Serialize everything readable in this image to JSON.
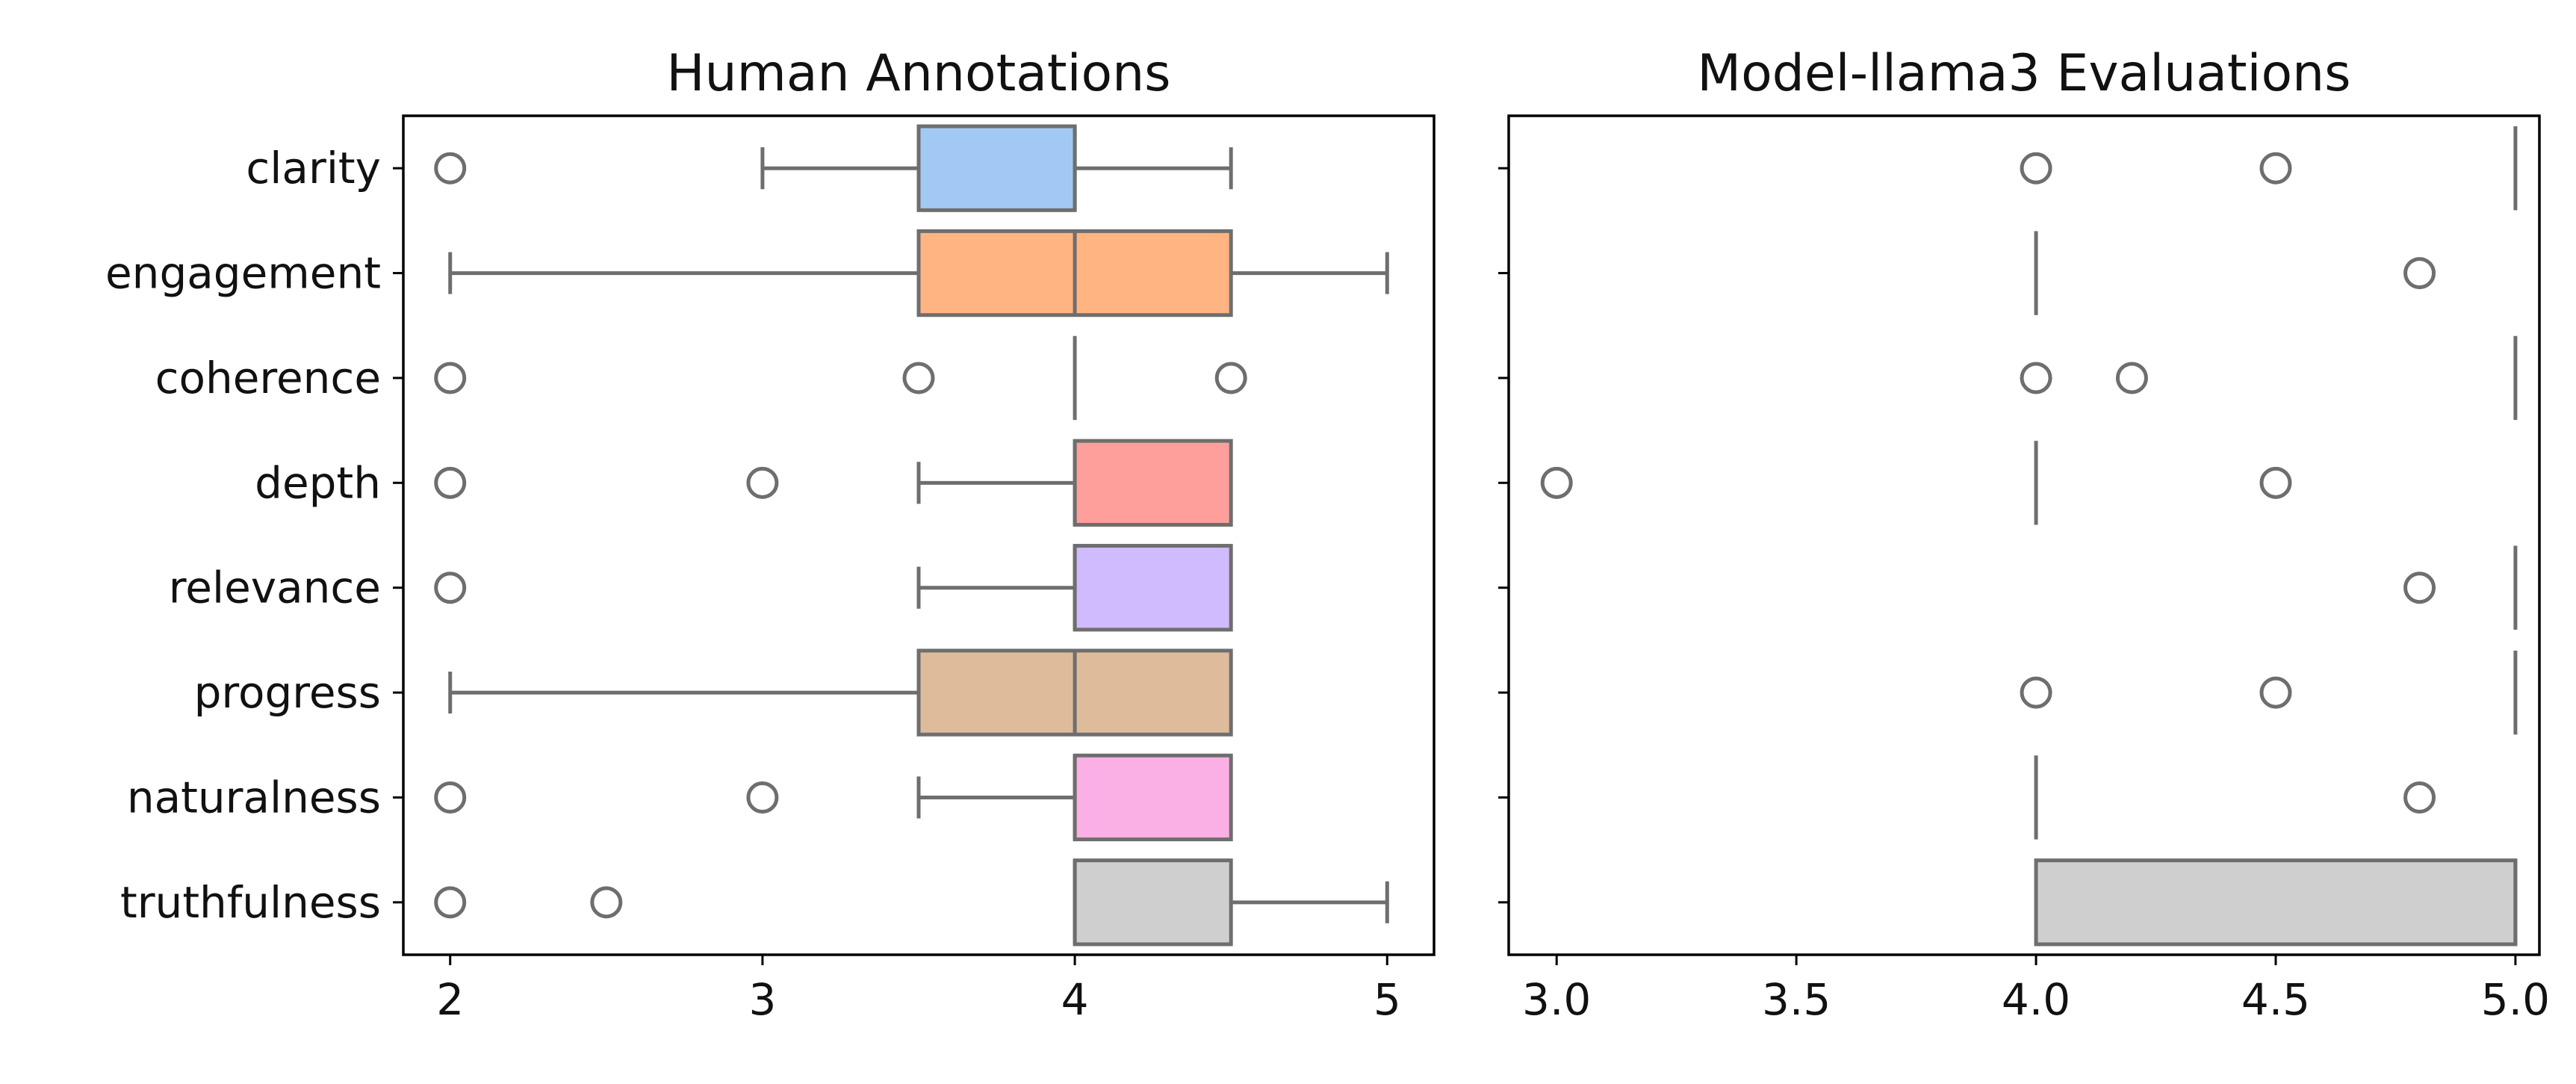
{
  "chart_data": [
    {
      "type": "box",
      "title": "Human Annotations",
      "orientation": "horizontal",
      "categories": [
        "clarity",
        "engagement",
        "coherence",
        "depth",
        "relevance",
        "progress",
        "naturalness",
        "truthfulness"
      ],
      "x_ticks": [
        "2",
        "3",
        "4",
        "5"
      ],
      "xlim": [
        1.85,
        5.15
      ],
      "boxes": [
        {
          "category": "clarity",
          "color": "#a1c9f4",
          "q1": 3.5,
          "median": 4.0,
          "q3": 4.0,
          "whisker_low": 3.0,
          "whisker_high": 4.5,
          "outliers": [
            2.0
          ]
        },
        {
          "category": "engagement",
          "color": "#ffb482",
          "q1": 3.5,
          "median": 4.0,
          "q3": 4.5,
          "whisker_low": 2.0,
          "whisker_high": 5.0,
          "outliers": []
        },
        {
          "category": "coherence",
          "color": "#8de5a1",
          "q1": 4.0,
          "median": 4.0,
          "q3": 4.0,
          "whisker_low": 4.0,
          "whisker_high": 4.0,
          "outliers": [
            2.0,
            3.5,
            4.5
          ]
        },
        {
          "category": "depth",
          "color": "#ff9f9b",
          "q1": 4.0,
          "median": 4.0,
          "q3": 4.5,
          "whisker_low": 3.5,
          "whisker_high": 4.5,
          "outliers": [
            2.0,
            3.0
          ]
        },
        {
          "category": "relevance",
          "color": "#d0bbff",
          "q1": 4.0,
          "median": 4.0,
          "q3": 4.5,
          "whisker_low": 3.5,
          "whisker_high": 4.5,
          "outliers": [
            2.0
          ]
        },
        {
          "category": "progress",
          "color": "#debb9b",
          "q1": 3.5,
          "median": 4.0,
          "q3": 4.5,
          "whisker_low": 2.0,
          "whisker_high": 4.5,
          "outliers": []
        },
        {
          "category": "naturalness",
          "color": "#fab0e4",
          "q1": 4.0,
          "median": 4.0,
          "q3": 4.5,
          "whisker_low": 3.5,
          "whisker_high": 4.5,
          "outliers": [
            2.0,
            3.0
          ]
        },
        {
          "category": "truthfulness",
          "color": "#cfcfcf",
          "q1": 4.0,
          "median": 4.0,
          "q3": 4.5,
          "whisker_low": 4.0,
          "whisker_high": 5.0,
          "outliers": [
            2.0,
            2.5
          ]
        }
      ]
    },
    {
      "type": "box",
      "title": "Model-llama3 Evaluations",
      "orientation": "horizontal",
      "categories": [
        "clarity",
        "engagement",
        "coherence",
        "depth",
        "relevance",
        "progress",
        "naturalness",
        "truthfulness"
      ],
      "x_ticks": [
        "3.0",
        "3.5",
        "4.0",
        "4.5",
        "5.0"
      ],
      "xlim": [
        2.9,
        5.05
      ],
      "boxes": [
        {
          "category": "clarity",
          "color": "#a1c9f4",
          "q1": 5.0,
          "median": 5.0,
          "q3": 5.0,
          "whisker_low": 5.0,
          "whisker_high": 5.0,
          "outliers": [
            4.0,
            4.5
          ]
        },
        {
          "category": "engagement",
          "color": "#ffb482",
          "q1": 4.0,
          "median": 4.0,
          "q3": 4.0,
          "whisker_low": 4.0,
          "whisker_high": 4.0,
          "outliers": [
            4.8
          ]
        },
        {
          "category": "coherence",
          "color": "#8de5a1",
          "q1": 5.0,
          "median": 5.0,
          "q3": 5.0,
          "whisker_low": 5.0,
          "whisker_high": 5.0,
          "outliers": [
            4.0,
            4.2
          ]
        },
        {
          "category": "depth",
          "color": "#ff9f9b",
          "q1": 4.0,
          "median": 4.0,
          "q3": 4.0,
          "whisker_low": 4.0,
          "whisker_high": 4.0,
          "outliers": [
            3.0,
            4.5
          ]
        },
        {
          "category": "relevance",
          "color": "#d0bbff",
          "q1": 5.0,
          "median": 5.0,
          "q3": 5.0,
          "whisker_low": 5.0,
          "whisker_high": 5.0,
          "outliers": [
            4.8
          ]
        },
        {
          "category": "progress",
          "color": "#debb9b",
          "q1": 5.0,
          "median": 5.0,
          "q3": 5.0,
          "whisker_low": 5.0,
          "whisker_high": 5.0,
          "outliers": [
            4.0,
            4.5
          ]
        },
        {
          "category": "naturalness",
          "color": "#fab0e4",
          "q1": 4.0,
          "median": 4.0,
          "q3": 4.0,
          "whisker_low": 4.0,
          "whisker_high": 4.0,
          "outliers": [
            4.8
          ]
        },
        {
          "category": "truthfulness",
          "color": "#cfcfcf",
          "q1": 4.0,
          "median": 5.0,
          "q3": 5.0,
          "whisker_low": 4.0,
          "whisker_high": 5.0,
          "outliers": []
        }
      ]
    }
  ],
  "colors": {
    "line": "#6e6e6e",
    "axes": "#000000",
    "background": "#ffffff"
  }
}
